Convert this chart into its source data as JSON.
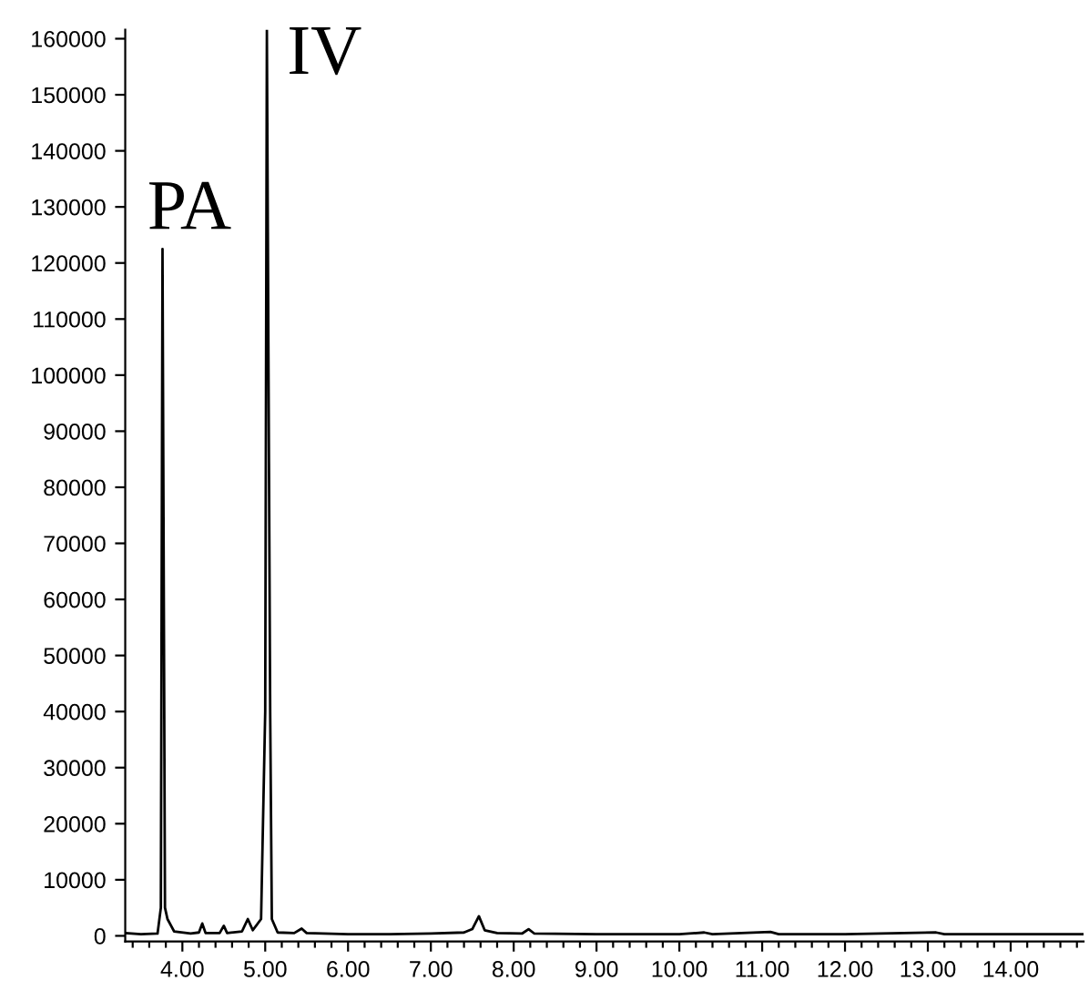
{
  "chart_data": {
    "type": "line",
    "x": [
      3.31,
      3.5,
      3.7,
      3.74,
      3.76,
      3.79,
      3.82,
      3.9,
      4.1,
      4.2,
      4.24,
      4.28,
      4.45,
      4.5,
      4.54,
      4.72,
      4.79,
      4.85,
      4.95,
      5.0,
      5.02,
      5.06,
      5.08,
      5.15,
      5.35,
      5.44,
      5.5,
      6.0,
      6.5,
      7.0,
      7.4,
      7.5,
      7.58,
      7.65,
      7.8,
      8.1,
      8.18,
      8.25,
      9.0,
      10.0,
      10.3,
      10.4,
      11.1,
      11.2,
      12.0,
      13.1,
      13.2,
      14.0,
      14.88
    ],
    "series": [
      {
        "color": "#000000",
        "values": [
          500,
          300,
          400,
          5000,
          122500,
          5000,
          3000,
          800,
          400,
          600,
          2200,
          500,
          500,
          1800,
          500,
          800,
          3000,
          1000,
          3000,
          40000,
          161600,
          40000,
          3000,
          600,
          500,
          1300,
          500,
          300,
          300,
          400,
          600,
          1200,
          3500,
          1000,
          500,
          400,
          1200,
          400,
          300,
          300,
          600,
          300,
          700,
          300,
          300,
          600,
          300,
          300,
          300
        ]
      }
    ],
    "annotations": [
      {
        "text": "PA",
        "x": 3.76,
        "y": 122500
      },
      {
        "text": "IV",
        "x": 5.02,
        "y": 161600
      }
    ],
    "xlim": [
      3.31,
      14.88
    ],
    "ylim": [
      -1000,
      161600
    ],
    "xticks": [
      {
        "value": 3.4,
        "label": null
      },
      {
        "value": 3.6,
        "label": null
      },
      {
        "value": 3.8,
        "label": null
      },
      {
        "value": 4,
        "label": "4.00"
      },
      {
        "value": 4.2,
        "label": null
      },
      {
        "value": 4.4,
        "label": null
      },
      {
        "value": 4.6,
        "label": null
      },
      {
        "value": 4.8,
        "label": null
      },
      {
        "value": 5,
        "label": "5.00"
      },
      {
        "value": 5.2,
        "label": null
      },
      {
        "value": 5.4,
        "label": null
      },
      {
        "value": 5.6,
        "label": null
      },
      {
        "value": 5.8,
        "label": null
      },
      {
        "value": 6,
        "label": "6.00"
      },
      {
        "value": 6.2,
        "label": null
      },
      {
        "value": 6.4,
        "label": null
      },
      {
        "value": 6.6,
        "label": null
      },
      {
        "value": 6.8,
        "label": null
      },
      {
        "value": 7,
        "label": "7.00"
      },
      {
        "value": 7.2,
        "label": null
      },
      {
        "value": 7.4,
        "label": null
      },
      {
        "value": 7.6,
        "label": null
      },
      {
        "value": 7.8,
        "label": null
      },
      {
        "value": 8,
        "label": "8.00"
      },
      {
        "value": 8.2,
        "label": null
      },
      {
        "value": 8.4,
        "label": null
      },
      {
        "value": 8.6,
        "label": null
      },
      {
        "value": 8.8,
        "label": null
      },
      {
        "value": 9,
        "label": "9.00"
      },
      {
        "value": 9.2,
        "label": null
      },
      {
        "value": 9.4,
        "label": null
      },
      {
        "value": 9.6,
        "label": null
      },
      {
        "value": 9.8,
        "label": null
      },
      {
        "value": 10,
        "label": "10.00"
      },
      {
        "value": 10.2,
        "label": null
      },
      {
        "value": 10.4,
        "label": null
      },
      {
        "value": 10.6,
        "label": null
      },
      {
        "value": 10.8,
        "label": null
      },
      {
        "value": 11,
        "label": "11.00"
      },
      {
        "value": 11.2,
        "label": null
      },
      {
        "value": 11.4,
        "label": null
      },
      {
        "value": 11.6,
        "label": null
      },
      {
        "value": 11.8,
        "label": null
      },
      {
        "value": 12,
        "label": "12.00"
      },
      {
        "value": 12.2,
        "label": null
      },
      {
        "value": 12.4,
        "label": null
      },
      {
        "value": 12.6,
        "label": null
      },
      {
        "value": 12.8,
        "label": null
      },
      {
        "value": 13,
        "label": "13.00"
      },
      {
        "value": 13.2,
        "label": null
      },
      {
        "value": 13.4,
        "label": null
      },
      {
        "value": 13.6,
        "label": null
      },
      {
        "value": 13.8,
        "label": null
      },
      {
        "value": 14,
        "label": "14.00"
      },
      {
        "value": 14.2,
        "label": null
      },
      {
        "value": 14.4,
        "label": null
      },
      {
        "value": 14.6,
        "label": null
      },
      {
        "value": 14.8,
        "label": null
      }
    ],
    "yticks": [
      0,
      10000,
      20000,
      30000,
      40000,
      50000,
      60000,
      70000,
      80000,
      90000,
      100000,
      110000,
      120000,
      130000,
      140000,
      150000,
      160000
    ],
    "grid": false,
    "legend": false
  }
}
